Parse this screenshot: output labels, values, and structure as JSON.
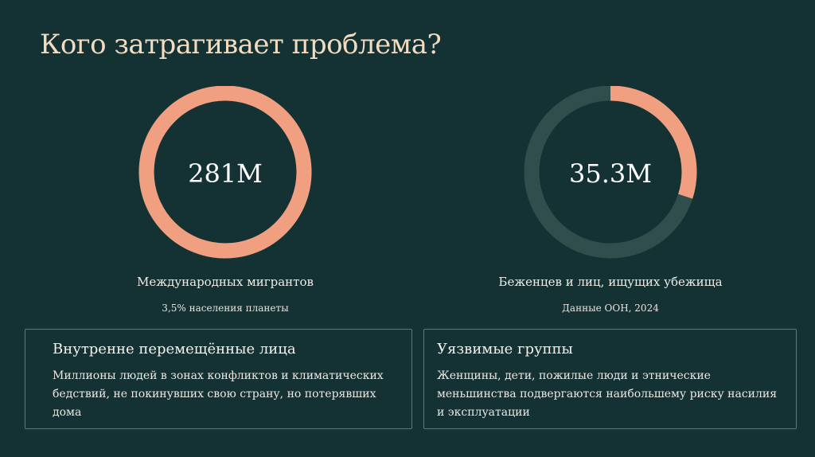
{
  "title": "Кого затрагивает проблема?",
  "stats": [
    {
      "value": "281M",
      "label": "Международных мигрантов",
      "sublabel": "3,5% населения планеты",
      "fraction": 1.0
    },
    {
      "value": "35.3M",
      "label": "Беженцев и лиц, ищущих убежища",
      "sublabel": "Данные ООН, 2024",
      "fraction": 0.3
    }
  ],
  "cards": [
    {
      "title": "Внутренне перемещённые лица",
      "text": "Миллионы людей в зонах конфликтов и климатических бедствий, не покинувших свою страну, но потерявших дома"
    },
    {
      "title": "Уязвимые группы",
      "text": "Женщины, дети, пожилые люди и этнические меньшинства подвергаются наибольшему риску насилия и эксплуатации"
    }
  ],
  "colors": {
    "background": "#143234",
    "accent": "#f0a080",
    "track": "#2f4e4c",
    "title": "#f2dcc0"
  }
}
